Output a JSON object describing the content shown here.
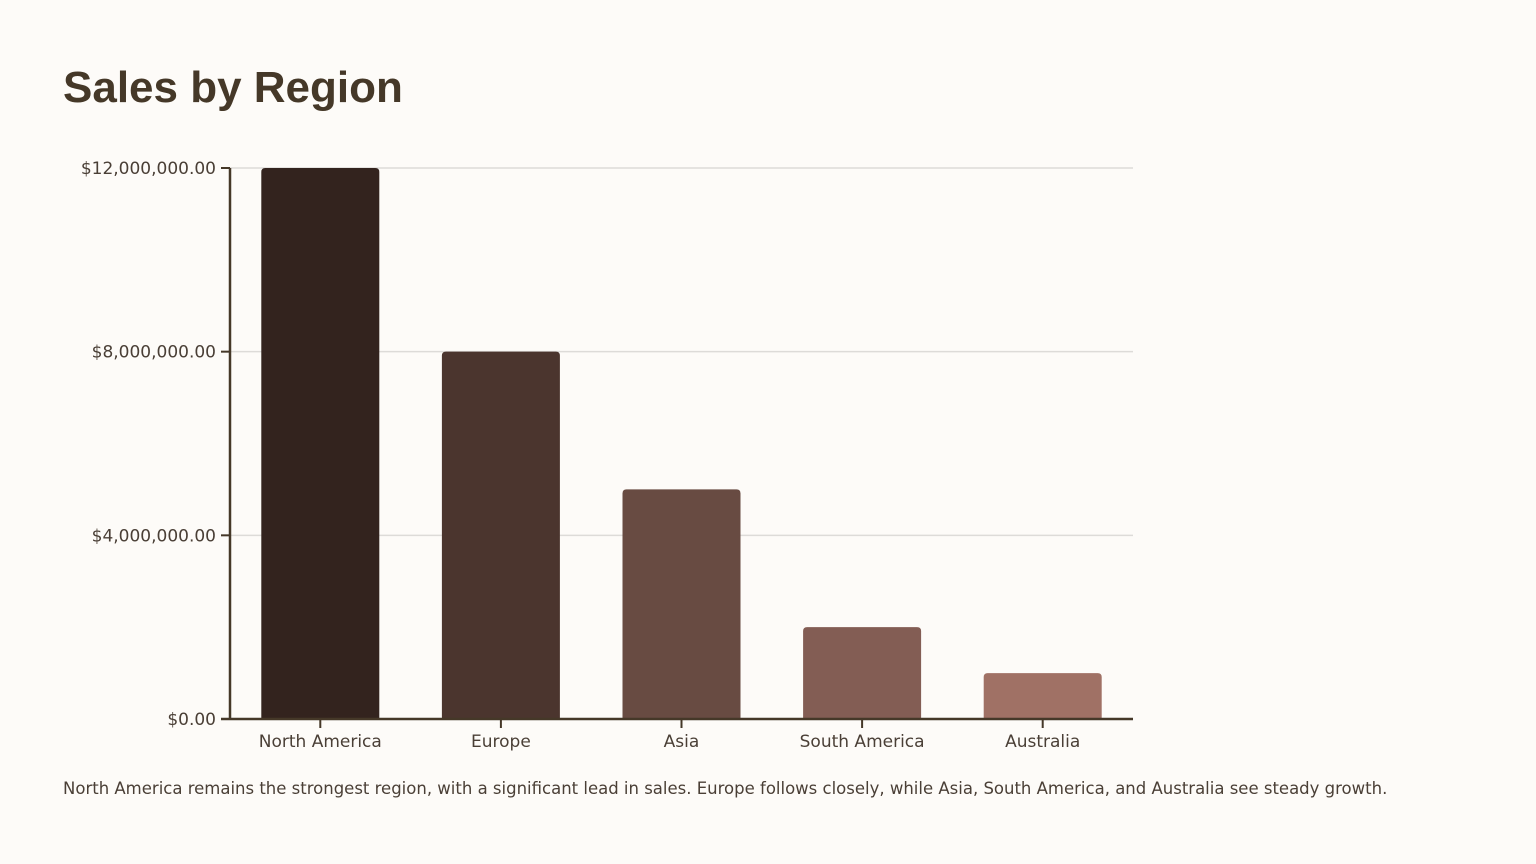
{
  "title": "Sales by Region",
  "caption": "North America remains the strongest region, with a significant lead in sales. Europe follows closely, while Asia, South America, and Australia see steady growth.",
  "colors": {
    "background": "#fdfbf8",
    "axis": "#453828",
    "gridline": "#dddbd8",
    "bars": [
      "#33231e",
      "#4b352e",
      "#684b42",
      "#835d54",
      "#a07165"
    ]
  },
  "chart_data": {
    "type": "bar",
    "title": "Sales by Region",
    "xlabel": "",
    "ylabel": "",
    "categories": [
      "North America",
      "Europe",
      "Asia",
      "South America",
      "Australia"
    ],
    "values": [
      12000000,
      8000000,
      5000000,
      2000000,
      1000000
    ],
    "ylim": [
      0,
      12000000
    ],
    "yticks": [
      0,
      4000000,
      8000000,
      12000000
    ],
    "ytick_labels": [
      "$0.00",
      "$4,000,000.00",
      "$8,000,000.00",
      "$12,000,000.00"
    ],
    "grid": true,
    "legend": "none"
  }
}
